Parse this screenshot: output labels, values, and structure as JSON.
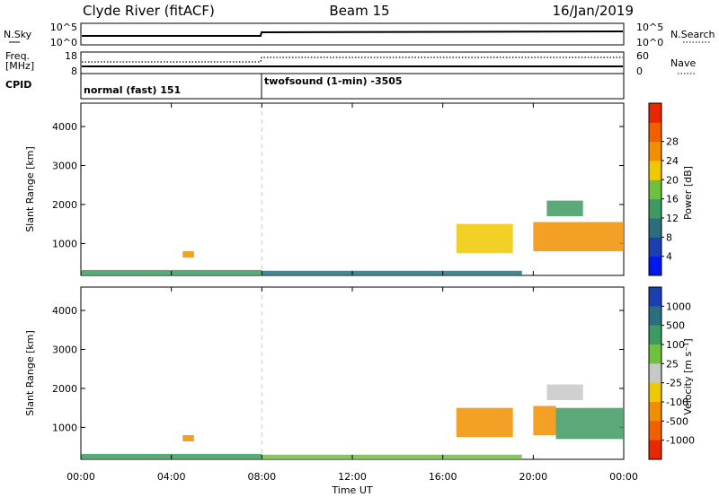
{
  "header": {
    "station": "Clyde River (fitACF)",
    "beam": "Beam 15",
    "date": "16/Jan/2019"
  },
  "sky_panel": {
    "label_left": "N.Sky",
    "tick_top": "10^5",
    "tick_bottom": "10^0",
    "label_right": "N.Search",
    "right_tick_top": "10^5",
    "right_tick_bottom": "10^0"
  },
  "freq_panel": {
    "label_left_1": "Freq.",
    "label_left_2": "[MHz]",
    "tick_top": "18",
    "tick_bottom": "8",
    "label_right": "Nave",
    "right_tick_top": "60",
    "right_tick_bottom": "0"
  },
  "cpid_panel": {
    "label": "CPID",
    "mode_1": "normal (fast) 151",
    "mode_2": "twofsound (1-min) -3505"
  },
  "chart_data": [
    {
      "type": "heatmap",
      "quantity": "Power",
      "ylabel": "Slant Range [km]",
      "ylim": [
        180,
        4600
      ],
      "yticks": [
        "1000",
        "2000",
        "3000",
        "4000"
      ],
      "colorbar_label": "Power [dB]",
      "colorbar_ticks": [
        "4",
        "8",
        "12",
        "16",
        "20",
        "24",
        "28"
      ],
      "colorbar_range": [
        0,
        30
      ],
      "colors": [
        "#0018f0",
        "#1a3fb0",
        "#2a6e80",
        "#3e9a62",
        "#70c040",
        "#f0c800",
        "#f09000",
        "#f06000",
        "#e82800"
      ],
      "echo_regions": [
        {
          "t_start": 0.0,
          "t_end": 8.0,
          "r_start": 180,
          "r_end": 320,
          "power": 10
        },
        {
          "t_start": 8.0,
          "t_end": 19.5,
          "r_start": 180,
          "r_end": 300,
          "power": 8
        },
        {
          "t_start": 4.5,
          "t_end": 5.0,
          "r_start": 640,
          "r_end": 800,
          "power": 20
        },
        {
          "t_start": 16.6,
          "t_end": 19.1,
          "r_start": 750,
          "r_end": 1500,
          "power": 18
        },
        {
          "t_start": 20.0,
          "t_end": 24.0,
          "r_start": 800,
          "r_end": 1550,
          "power": 22
        },
        {
          "t_start": 20.6,
          "t_end": 22.2,
          "r_start": 1700,
          "r_end": 2100,
          "power": 12
        }
      ]
    },
    {
      "type": "heatmap",
      "quantity": "Velocity",
      "ylabel": "Slant Range [km]",
      "ylim": [
        180,
        4600
      ],
      "yticks": [
        "1000",
        "2000",
        "3000",
        "4000"
      ],
      "colorbar_label": "Velocity [m s⁻¹]",
      "colorbar_ticks": [
        "1000",
        "500",
        "100",
        "25",
        "-25",
        "-100",
        "-500",
        "-1000"
      ],
      "colors": [
        "#1a3fb0",
        "#2a6e80",
        "#3e9a62",
        "#70c040",
        "#c8c8c8",
        "#f0c800",
        "#f09000",
        "#f06000",
        "#e82800"
      ],
      "echo_regions": [
        {
          "t_start": 0.0,
          "t_end": 8.0,
          "r_start": 180,
          "r_end": 320,
          "velocity": 60
        },
        {
          "t_start": 8.0,
          "t_end": 19.5,
          "r_start": 180,
          "r_end": 300,
          "velocity": 20
        },
        {
          "t_start": 4.5,
          "t_end": 5.0,
          "r_start": 640,
          "r_end": 800,
          "velocity": -300
        },
        {
          "t_start": 16.6,
          "t_end": 19.1,
          "r_start": 750,
          "r_end": 1500,
          "velocity": -150
        },
        {
          "t_start": 20.0,
          "t_end": 21.0,
          "r_start": 800,
          "r_end": 1550,
          "velocity": -150
        },
        {
          "t_start": 21.0,
          "t_end": 24.0,
          "r_start": 700,
          "r_end": 1500,
          "velocity": 100
        },
        {
          "t_start": 20.6,
          "t_end": 22.2,
          "r_start": 1700,
          "r_end": 2100,
          "velocity": 0
        }
      ]
    }
  ],
  "xaxis": {
    "label": "Time UT",
    "ticks": [
      "00:00",
      "04:00",
      "08:00",
      "12:00",
      "16:00",
      "20:00",
      "00:00"
    ],
    "range_hours": [
      0,
      24
    ],
    "cpid_change_hour": 8.0
  }
}
